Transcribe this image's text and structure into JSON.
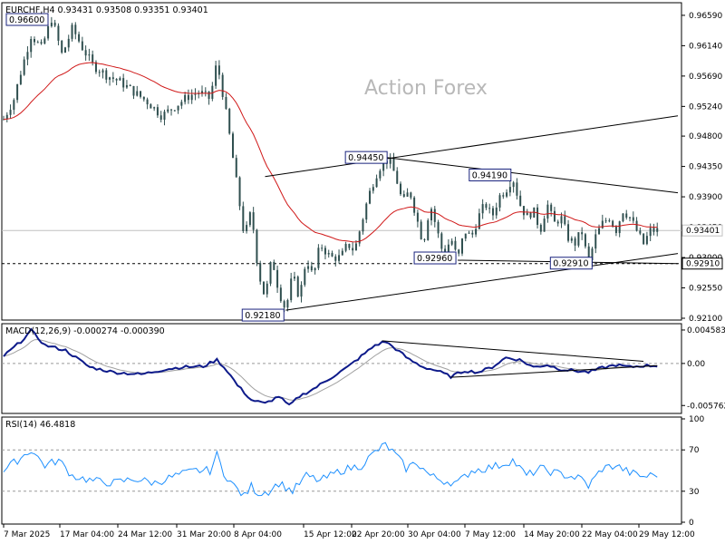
{
  "chart_data": [
    {
      "type": "candlestick",
      "panel": "price",
      "title": "EURCHF,H4  0.93431 0.93508 0.93351 0.93401",
      "watermark": "Action Forex",
      "ylim": [
        0.921,
        0.9675
      ],
      "y_ticks": [
        "0.96590",
        "0.96140",
        "0.95690",
        "0.95240",
        "0.94800",
        "0.94350",
        "0.93900",
        "0.93450",
        "0.93000",
        "0.92550",
        "0.92100"
      ],
      "x_ticks": [
        "7 Mar 2025",
        "17 Mar 04:00",
        "24 Mar 12:00",
        "31 Mar 20:00",
        "8 Apr 04:00",
        "15 Apr 12:00",
        "22 Apr 20:00",
        "30 Apr 04:00",
        "7 May 12:00",
        "14 May 20:00",
        "22 May 04:00",
        "29 May 12:00"
      ],
      "current_price": "0.93401",
      "support_level": "0.92910",
      "close_path": [
        {
          "t": 0,
          "v": 0.9505
        },
        {
          "t": 3,
          "v": 0.9535
        },
        {
          "t": 5,
          "v": 0.9575
        },
        {
          "t": 8,
          "v": 0.963
        },
        {
          "t": 11,
          "v": 0.961
        },
        {
          "t": 14,
          "v": 0.9655
        },
        {
          "t": 17,
          "v": 0.96
        },
        {
          "t": 20,
          "v": 0.964
        },
        {
          "t": 23,
          "v": 0.961
        },
        {
          "t": 26,
          "v": 0.9585
        },
        {
          "t": 30,
          "v": 0.957
        },
        {
          "t": 34,
          "v": 0.956
        },
        {
          "t": 38,
          "v": 0.9545
        },
        {
          "t": 42,
          "v": 0.953
        },
        {
          "t": 46,
          "v": 0.951
        },
        {
          "t": 50,
          "v": 0.9525
        },
        {
          "t": 54,
          "v": 0.954
        },
        {
          "t": 57,
          "v": 0.9545
        },
        {
          "t": 60,
          "v": 0.9535
        },
        {
          "t": 62,
          "v": 0.959
        },
        {
          "t": 64,
          "v": 0.9535
        },
        {
          "t": 66,
          "v": 0.947
        },
        {
          "t": 68,
          "v": 0.94
        },
        {
          "t": 70,
          "v": 0.933
        },
        {
          "t": 72,
          "v": 0.937
        },
        {
          "t": 74,
          "v": 0.928
        },
        {
          "t": 76,
          "v": 0.924
        },
        {
          "t": 78,
          "v": 0.93
        },
        {
          "t": 80,
          "v": 0.925
        },
        {
          "t": 82,
          "v": 0.9222
        },
        {
          "t": 84,
          "v": 0.9275
        },
        {
          "t": 86,
          "v": 0.924
        },
        {
          "t": 88,
          "v": 0.93
        },
        {
          "t": 90,
          "v": 0.927
        },
        {
          "t": 92,
          "v": 0.932
        },
        {
          "t": 95,
          "v": 0.93
        },
        {
          "t": 98,
          "v": 0.93
        },
        {
          "t": 100,
          "v": 0.932
        },
        {
          "t": 102,
          "v": 0.931
        },
        {
          "t": 104,
          "v": 0.935
        },
        {
          "t": 106,
          "v": 0.939
        },
        {
          "t": 108,
          "v": 0.942
        },
        {
          "t": 110,
          "v": 0.944
        },
        {
          "t": 112,
          "v": 0.9445
        },
        {
          "t": 114,
          "v": 0.942
        },
        {
          "t": 116,
          "v": 0.938
        },
        {
          "t": 118,
          "v": 0.94
        },
        {
          "t": 120,
          "v": 0.936
        },
        {
          "t": 122,
          "v": 0.932
        },
        {
          "t": 124,
          "v": 0.938
        },
        {
          "t": 126,
          "v": 0.934
        },
        {
          "t": 128,
          "v": 0.93
        },
        {
          "t": 130,
          "v": 0.933
        },
        {
          "t": 132,
          "v": 0.9296
        },
        {
          "t": 134,
          "v": 0.934
        },
        {
          "t": 136,
          "v": 0.933
        },
        {
          "t": 138,
          "v": 0.936
        },
        {
          "t": 140,
          "v": 0.938
        },
        {
          "t": 142,
          "v": 0.936
        },
        {
          "t": 144,
          "v": 0.939
        },
        {
          "t": 146,
          "v": 0.94
        },
        {
          "t": 148,
          "v": 0.9419
        },
        {
          "t": 150,
          "v": 0.938
        },
        {
          "t": 152,
          "v": 0.936
        },
        {
          "t": 154,
          "v": 0.937
        },
        {
          "t": 156,
          "v": 0.934
        },
        {
          "t": 158,
          "v": 0.938
        },
        {
          "t": 160,
          "v": 0.935
        },
        {
          "t": 162,
          "v": 0.936
        },
        {
          "t": 164,
          "v": 0.933
        },
        {
          "t": 166,
          "v": 0.932
        },
        {
          "t": 168,
          "v": 0.934
        },
        {
          "t": 170,
          "v": 0.9291
        },
        {
          "t": 172,
          "v": 0.933
        },
        {
          "t": 174,
          "v": 0.935
        },
        {
          "t": 176,
          "v": 0.936
        },
        {
          "t": 178,
          "v": 0.934
        },
        {
          "t": 180,
          "v": 0.937
        },
        {
          "t": 182,
          "v": 0.936
        },
        {
          "t": 184,
          "v": 0.934
        },
        {
          "t": 186,
          "v": 0.932
        },
        {
          "t": 188,
          "v": 0.934
        },
        {
          "t": 190,
          "v": 0.934
        }
      ],
      "callouts": [
        {
          "label": "0.96600",
          "t": 5,
          "v": 0.966
        },
        {
          "label": "0.92180",
          "t": 82,
          "v": 0.9218
        },
        {
          "label": "0.94450",
          "t": 112,
          "v": 0.9445
        },
        {
          "label": "0.92960",
          "t": 132,
          "v": 0.9296
        },
        {
          "label": "0.94190",
          "t": 148,
          "v": 0.9419
        },
        {
          "label": "0.92910",
          "t": 170,
          "v": 0.9291
        }
      ],
      "trendlines": [
        {
          "from": {
            "t": 76,
            "v": 0.942
          },
          "to": {
            "t": 196,
            "v": 0.951
          }
        },
        {
          "from": {
            "t": 82,
            "v": 0.9222
          },
          "to": {
            "t": 196,
            "v": 0.9306
          }
        },
        {
          "from": {
            "t": 110,
            "v": 0.9449
          },
          "to": {
            "t": 196,
            "v": 0.9396
          }
        },
        {
          "from": {
            "t": 132,
            "v": 0.9296
          },
          "to": {
            "t": 196,
            "v": 0.9291
          }
        }
      ]
    },
    {
      "type": "line",
      "panel": "macd",
      "title": "MACD(12,26,9) -0.000274 -0.000390",
      "ylim": [
        -0.0066,
        0.0052
      ],
      "y_ticks": [
        "0.004583",
        "0.00",
        "-0.005762"
      ],
      "macd_path": [
        {
          "t": 0,
          "v": 0.001
        },
        {
          "t": 5,
          "v": 0.003
        },
        {
          "t": 8,
          "v": 0.0045
        },
        {
          "t": 12,
          "v": 0.0025
        },
        {
          "t": 18,
          "v": 0.0018
        },
        {
          "t": 25,
          "v": -0.0005
        },
        {
          "t": 32,
          "v": -0.0012
        },
        {
          "t": 40,
          "v": -0.0015
        },
        {
          "t": 47,
          "v": -0.0008
        },
        {
          "t": 52,
          "v": -0.0005
        },
        {
          "t": 58,
          "v": -0.0004
        },
        {
          "t": 62,
          "v": 0.0005
        },
        {
          "t": 65,
          "v": -0.001
        },
        {
          "t": 68,
          "v": -0.003
        },
        {
          "t": 72,
          "v": -0.005
        },
        {
          "t": 76,
          "v": -0.0055
        },
        {
          "t": 80,
          "v": -0.0045
        },
        {
          "t": 83,
          "v": -0.0058
        },
        {
          "t": 86,
          "v": -0.0045
        },
        {
          "t": 90,
          "v": -0.0035
        },
        {
          "t": 95,
          "v": -0.002
        },
        {
          "t": 100,
          "v": -0.0005
        },
        {
          "t": 104,
          "v": 0.001
        },
        {
          "t": 108,
          "v": 0.0025
        },
        {
          "t": 111,
          "v": 0.003
        },
        {
          "t": 114,
          "v": 0.002
        },
        {
          "t": 118,
          "v": 0.0005
        },
        {
          "t": 122,
          "v": -0.0005
        },
        {
          "t": 126,
          "v": -0.001
        },
        {
          "t": 130,
          "v": -0.0018
        },
        {
          "t": 134,
          "v": -0.001
        },
        {
          "t": 138,
          "v": -0.0012
        },
        {
          "t": 142,
          "v": -0.0005
        },
        {
          "t": 146,
          "v": 0.0008
        },
        {
          "t": 150,
          "v": 0.0005
        },
        {
          "t": 154,
          "v": -0.0005
        },
        {
          "t": 158,
          "v": -0.0002
        },
        {
          "t": 162,
          "v": -0.0008
        },
        {
          "t": 166,
          "v": -0.001
        },
        {
          "t": 170,
          "v": -0.0012
        },
        {
          "t": 174,
          "v": -0.0006
        },
        {
          "t": 178,
          "v": -0.0002
        },
        {
          "t": 182,
          "v": -0.0005
        },
        {
          "t": 186,
          "v": -0.0003
        },
        {
          "t": 190,
          "v": -0.0003
        }
      ],
      "trendlines": [
        {
          "from": {
            "t": 110,
            "v": 0.0031
          },
          "to": {
            "t": 186,
            "v": 0.0003
          }
        },
        {
          "from": {
            "t": 130,
            "v": -0.0019
          },
          "to": {
            "t": 190,
            "v": -0.0003
          }
        }
      ]
    },
    {
      "type": "line",
      "panel": "rsi",
      "title": "RSI(14) 46.4818",
      "ylim": [
        0,
        100
      ],
      "y_ticks": [
        "100",
        "70",
        "30",
        "0"
      ],
      "levels": [
        70,
        30
      ],
      "rsi_path": [
        {
          "t": 0,
          "v": 50
        },
        {
          "t": 4,
          "v": 60
        },
        {
          "t": 8,
          "v": 70
        },
        {
          "t": 12,
          "v": 55
        },
        {
          "t": 16,
          "v": 60
        },
        {
          "t": 20,
          "v": 45
        },
        {
          "t": 26,
          "v": 40
        },
        {
          "t": 32,
          "v": 38
        },
        {
          "t": 38,
          "v": 42
        },
        {
          "t": 44,
          "v": 38
        },
        {
          "t": 50,
          "v": 45
        },
        {
          "t": 56,
          "v": 50
        },
        {
          "t": 60,
          "v": 50
        },
        {
          "t": 62,
          "v": 65
        },
        {
          "t": 64,
          "v": 48
        },
        {
          "t": 67,
          "v": 35
        },
        {
          "t": 70,
          "v": 25
        },
        {
          "t": 72,
          "v": 35
        },
        {
          "t": 74,
          "v": 28
        },
        {
          "t": 77,
          "v": 30
        },
        {
          "t": 80,
          "v": 38
        },
        {
          "t": 84,
          "v": 30
        },
        {
          "t": 88,
          "v": 45
        },
        {
          "t": 92,
          "v": 40
        },
        {
          "t": 98,
          "v": 50
        },
        {
          "t": 104,
          "v": 55
        },
        {
          "t": 108,
          "v": 68
        },
        {
          "t": 111,
          "v": 75
        },
        {
          "t": 114,
          "v": 65
        },
        {
          "t": 117,
          "v": 52
        },
        {
          "t": 120,
          "v": 58
        },
        {
          "t": 124,
          "v": 45
        },
        {
          "t": 128,
          "v": 40
        },
        {
          "t": 132,
          "v": 38
        },
        {
          "t": 136,
          "v": 50
        },
        {
          "t": 140,
          "v": 52
        },
        {
          "t": 144,
          "v": 55
        },
        {
          "t": 148,
          "v": 60
        },
        {
          "t": 152,
          "v": 45
        },
        {
          "t": 156,
          "v": 52
        },
        {
          "t": 160,
          "v": 48
        },
        {
          "t": 164,
          "v": 45
        },
        {
          "t": 168,
          "v": 42
        },
        {
          "t": 170,
          "v": 35
        },
        {
          "t": 174,
          "v": 52
        },
        {
          "t": 178,
          "v": 55
        },
        {
          "t": 182,
          "v": 48
        },
        {
          "t": 186,
          "v": 44
        },
        {
          "t": 190,
          "v": 46.5
        }
      ]
    }
  ]
}
